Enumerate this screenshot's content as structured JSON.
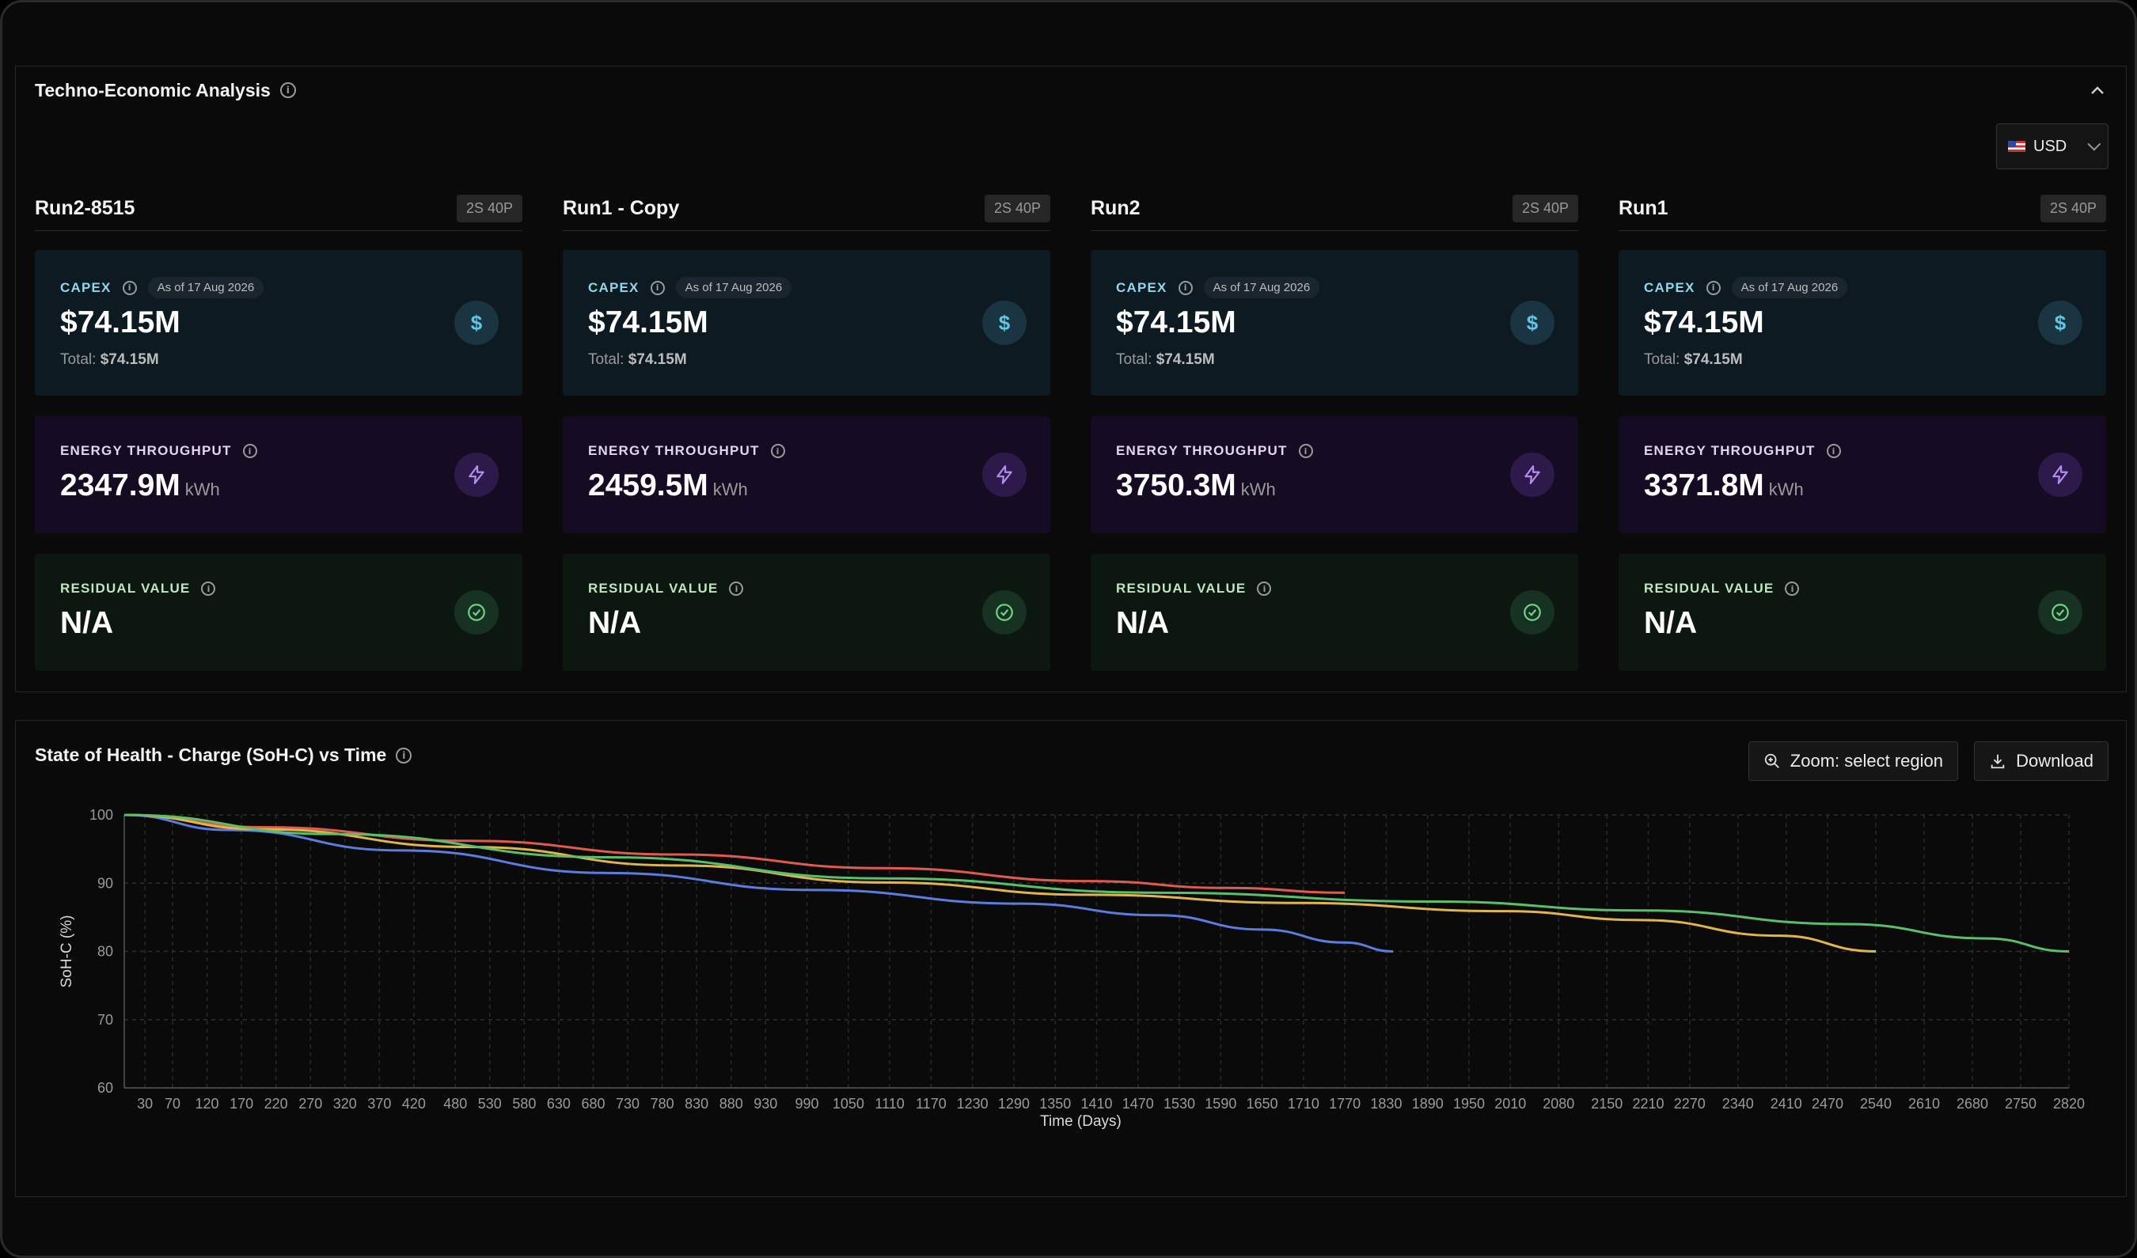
{
  "tea": {
    "title": "Techno-Economic Analysis",
    "currency": "USD",
    "capex_label": "CAPEX",
    "energy_label": "ENERGY THROUGHPUT",
    "residual_label": "RESIDUAL VALUE",
    "total_prefix": "Total:",
    "runs": [
      {
        "name": "Run2-8515",
        "config": "2S 40P",
        "capex": "$74.15M",
        "capex_date": "As of 17 Aug 2026",
        "capex_total": "$74.15M",
        "energy": "2347.9M",
        "energy_unit": "kWh",
        "residual": "N/A"
      },
      {
        "name": "Run1 - Copy",
        "config": "2S 40P",
        "capex": "$74.15M",
        "capex_date": "As of 17 Aug 2026",
        "capex_total": "$74.15M",
        "energy": "2459.5M",
        "energy_unit": "kWh",
        "residual": "N/A"
      },
      {
        "name": "Run2",
        "config": "2S 40P",
        "capex": "$74.15M",
        "capex_date": "As of 17 Aug 2026",
        "capex_total": "$74.15M",
        "energy": "3750.3M",
        "energy_unit": "kWh",
        "residual": "N/A"
      },
      {
        "name": "Run1",
        "config": "2S 40P",
        "capex": "$74.15M",
        "capex_date": "As of 17 Aug 2026",
        "capex_total": "$74.15M",
        "energy": "3371.8M",
        "energy_unit": "kWh",
        "residual": "N/A"
      }
    ]
  },
  "soh": {
    "title": "State of Health - Charge (SoH-C) vs Time",
    "zoom_label": "Zoom: select region",
    "download_label": "Download"
  },
  "chart_data": {
    "type": "line",
    "xlabel": "Time (Days)",
    "ylabel": "SoH-C (%)",
    "xlim": [
      0,
      2820
    ],
    "ylim": [
      60,
      100
    ],
    "yticks": [
      60,
      70,
      80,
      90,
      100
    ],
    "xticks": [
      30,
      70,
      120,
      170,
      220,
      270,
      320,
      370,
      420,
      480,
      530,
      580,
      630,
      680,
      730,
      780,
      830,
      880,
      930,
      990,
      1050,
      1110,
      1170,
      1230,
      1290,
      1350,
      1410,
      1470,
      1530,
      1590,
      1650,
      1710,
      1770,
      1830,
      1890,
      1950,
      2010,
      2080,
      2150,
      2210,
      2270,
      2340,
      2410,
      2470,
      2540,
      2610,
      2680,
      2750,
      2820
    ],
    "grid": true,
    "series": [
      {
        "color": "#e05a4e",
        "x": [
          0,
          200,
          500,
          800,
          1100,
          1400,
          1600,
          1770
        ],
        "y": [
          100,
          98.2,
          96.2,
          94.2,
          92.2,
          90.3,
          89.3,
          88.6
        ]
      },
      {
        "color": "#5b7de0",
        "x": [
          0,
          150,
          400,
          700,
          1000,
          1300,
          1500,
          1650,
          1770,
          1840
        ],
        "y": [
          100,
          97.8,
          94.8,
          91.5,
          89.0,
          87.0,
          85.3,
          83.2,
          81.3,
          80.0
        ]
      },
      {
        "color": "#e0b54b",
        "x": [
          0,
          200,
          500,
          800,
          1100,
          1400,
          1700,
          2000,
          2200,
          2400,
          2540
        ],
        "y": [
          100,
          97.9,
          95.3,
          92.6,
          90.1,
          88.3,
          87.1,
          85.9,
          84.6,
          82.3,
          80.0
        ]
      },
      {
        "color": "#5bbf6a",
        "x": [
          0,
          300,
          700,
          1100,
          1500,
          1900,
          2200,
          2500,
          2700,
          2820
        ],
        "y": [
          100,
          97.2,
          93.8,
          90.7,
          88.6,
          87.3,
          86.0,
          84.0,
          81.9,
          80.0
        ]
      }
    ]
  }
}
